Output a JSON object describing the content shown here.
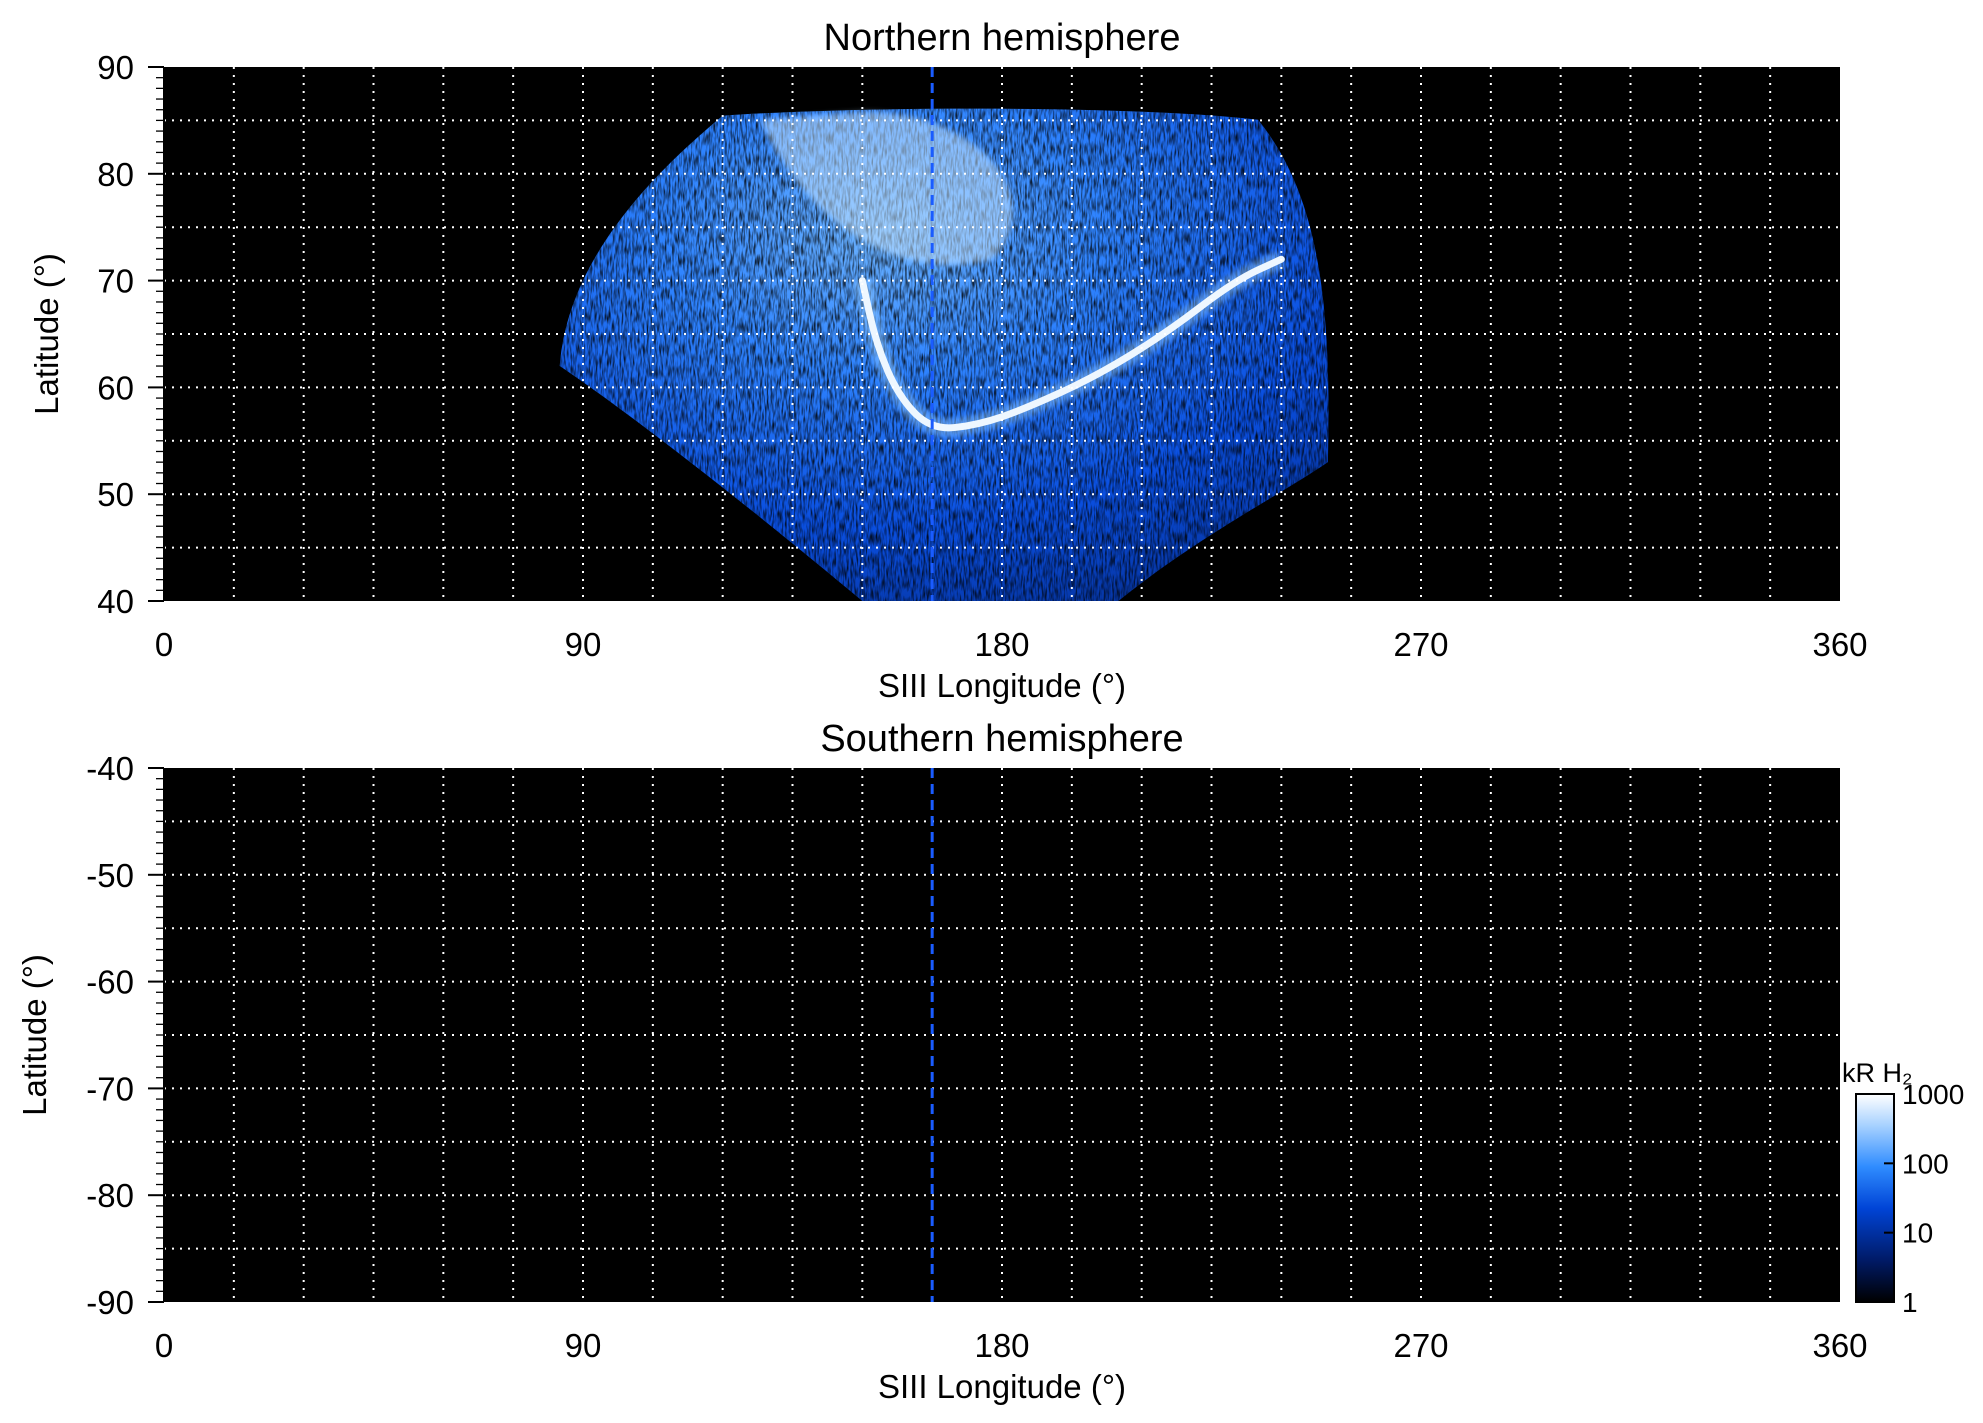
{
  "chart_data": [
    {
      "type": "heatmap",
      "title": "Northern hemisphere",
      "xlabel": "SIII Longitude (°)",
      "ylabel": "Latitude (°)",
      "xlim": [
        0,
        360
      ],
      "ylim": [
        40,
        90
      ],
      "xticks": [
        0,
        90,
        180,
        270,
        360
      ],
      "yticks": [
        40,
        50,
        60,
        70,
        80,
        90
      ],
      "grid": true,
      "reference_longitude": 165,
      "emission_region": {
        "lon_range": [
          85,
          250
        ],
        "lat_range": [
          40,
          86
        ]
      },
      "main_oval": [
        {
          "lon": 150,
          "lat": 70
        },
        {
          "lon": 153,
          "lat": 64
        },
        {
          "lon": 158,
          "lat": 59
        },
        {
          "lon": 165,
          "lat": 56
        },
        {
          "lon": 175,
          "lat": 56.5
        },
        {
          "lon": 185,
          "lat": 58
        },
        {
          "lon": 200,
          "lat": 61
        },
        {
          "lon": 215,
          "lat": 65
        },
        {
          "lon": 230,
          "lat": 70
        },
        {
          "lon": 240,
          "lat": 72
        }
      ]
    },
    {
      "type": "heatmap",
      "title": "Southern hemisphere",
      "xlabel": "SIII Longitude (°)",
      "ylabel": "Latitude (°)",
      "xlim": [
        0,
        360
      ],
      "ylim": [
        -90,
        -40
      ],
      "xticks": [
        0,
        90,
        180,
        270,
        360
      ],
      "yticks": [
        -40,
        -50,
        -60,
        -70,
        -80,
        -90
      ],
      "grid": true,
      "reference_longitude": 165
    }
  ],
  "colorbar": {
    "label": "kR H₂",
    "scale": "log",
    "range": [
      1,
      1000
    ],
    "ticks": [
      {
        "value": 1,
        "label": "1"
      },
      {
        "value": 10,
        "label": "10"
      },
      {
        "value": 100,
        "label": "100"
      },
      {
        "value": 1000,
        "label": "1000"
      }
    ],
    "colors": [
      "#000000",
      "#001a66",
      "#0044d6",
      "#2f8cff",
      "#a8d2ff",
      "#ffffff"
    ]
  }
}
